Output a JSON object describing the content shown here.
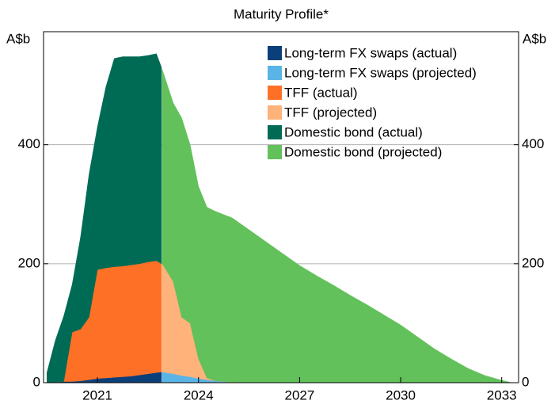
{
  "chart_data": {
    "type": "stacked-area",
    "subtitle": "Maturity Profile*",
    "ylabel": "A$b",
    "y2label": "A$b",
    "x": [
      2019.5,
      2019.75,
      2020,
      2020.25,
      2020.5,
      2020.75,
      2021,
      2021.25,
      2021.5,
      2021.75,
      2022,
      2022.25,
      2022.5,
      2022.75,
      2022.9,
      2022.92,
      2023.25,
      2023.5,
      2023.75,
      2024,
      2024.25,
      2024.5,
      2025,
      2025.5,
      2026,
      2026.5,
      2027,
      2027.5,
      2028,
      2028.5,
      2029,
      2029.5,
      2030,
      2030.5,
      2031,
      2031.5,
      2032,
      2032.5,
      2033,
      2033.3
    ],
    "series": [
      {
        "name": "Long-term FX swaps (actual)",
        "color": "#0a3f7a",
        "values": [
          0,
          1,
          2,
          2,
          3,
          5,
          7,
          8,
          9,
          10,
          11,
          13,
          15,
          17,
          18,
          null,
          null,
          null,
          null,
          null,
          null,
          null,
          null,
          null,
          null,
          null,
          null,
          null,
          null,
          null,
          null,
          null,
          null,
          null,
          null,
          null,
          null,
          null,
          null,
          null
        ]
      },
      {
        "name": "Long-term FX swaps (projected)",
        "color": "#5ab4e6",
        "values": [
          null,
          null,
          null,
          null,
          null,
          null,
          null,
          null,
          null,
          null,
          null,
          null,
          null,
          null,
          null,
          18,
          15,
          12,
          10,
          7,
          5,
          3,
          1,
          0,
          0,
          0,
          0,
          0,
          0,
          0,
          0,
          0,
          0,
          0,
          0,
          0,
          0,
          0,
          0,
          0
        ]
      },
      {
        "name": "TFF (actual)",
        "color": "#ff7027",
        "values": [
          0,
          0,
          0,
          83,
          87,
          105,
          183,
          185,
          186,
          186,
          187,
          187,
          188,
          188,
          182,
          null,
          null,
          null,
          null,
          null,
          null,
          null,
          null,
          null,
          null,
          null,
          null,
          null,
          null,
          null,
          null,
          null,
          null,
          null,
          null,
          null,
          null,
          null,
          null,
          null
        ]
      },
      {
        "name": "TFF (projected)",
        "color": "#ffb27a",
        "values": [
          null,
          null,
          null,
          null,
          null,
          null,
          null,
          null,
          null,
          null,
          null,
          null,
          null,
          null,
          null,
          182,
          155,
          98,
          90,
          33,
          3,
          0,
          0,
          0,
          0,
          0,
          0,
          0,
          0,
          0,
          0,
          0,
          0,
          0,
          0,
          0,
          0,
          0,
          0,
          0
        ]
      },
      {
        "name": "Domestic bond (actual)",
        "color": "#006b54",
        "values": [
          17,
          70,
          110,
          80,
          155,
          240,
          240,
          304,
          350,
          352,
          350,
          348,
          347,
          348,
          330,
          null,
          null,
          null,
          null,
          null,
          null,
          null,
          null,
          null,
          null,
          null,
          null,
          null,
          null,
          null,
          null,
          null,
          null,
          null,
          null,
          null,
          null,
          null,
          null,
          null
        ]
      },
      {
        "name": "Domestic bond (projected)",
        "color": "#62c15a",
        "values": [
          null,
          null,
          null,
          null,
          null,
          null,
          null,
          null,
          null,
          null,
          null,
          null,
          null,
          null,
          null,
          327,
          300,
          335,
          300,
          290,
          287,
          285,
          276,
          257,
          237,
          217,
          197,
          180,
          164,
          147,
          131,
          114,
          97,
          77,
          57,
          40,
          24,
          12,
          4,
          0
        ]
      }
    ],
    "xlim": [
      2019.4,
      2033.5
    ],
    "xticks": [
      2021,
      2024,
      2027,
      2030,
      2033
    ],
    "ylim": [
      0,
      590
    ],
    "yticks": [
      0,
      200,
      400
    ],
    "y2lim": [
      0,
      590
    ],
    "y2ticks": [
      0,
      200,
      400
    ],
    "grid": true,
    "legend": "upper right"
  }
}
